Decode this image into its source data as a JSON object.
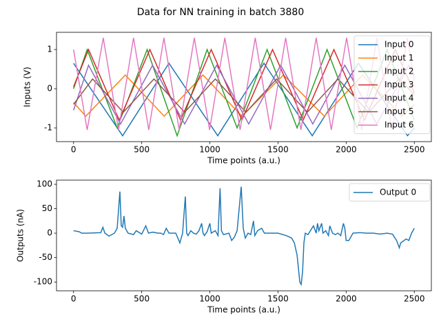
{
  "title": "Data for NN training in batch 3880",
  "chart_data": [
    {
      "type": "line",
      "xlabel": "Time points (a.u.)",
      "ylabel": "Inputs (V)",
      "xlim": [
        -125,
        2625
      ],
      "ylim": [
        -1.35,
        1.44
      ],
      "xticks": [
        0,
        500,
        1000,
        1500,
        2000,
        2500
      ],
      "yticks": [
        -1,
        0,
        1
      ],
      "legend": "upper right",
      "series": [
        {
          "name": "Input 0",
          "color": "#1f77b4",
          "x": [
            0,
            360,
            700,
            1058,
            1397,
            1751,
            2090,
            2450,
            2500
          ],
          "values": [
            0.65,
            -1.2,
            0.65,
            -1.2,
            0.65,
            -1.2,
            0.65,
            -1.2,
            -1.0
          ]
        },
        {
          "name": "Input 1",
          "color": "#ff7f0e",
          "x": [
            0,
            90,
            380,
            665,
            950,
            1235,
            1540,
            1840,
            2120,
            2410,
            2500
          ],
          "values": [
            -0.35,
            -0.7,
            0.35,
            -0.7,
            0.35,
            -0.7,
            0.35,
            -0.7,
            0.35,
            -0.7,
            -0.4
          ]
        },
        {
          "name": "Input 2",
          "color": "#2ca02c",
          "x": [
            0,
            100,
            320,
            540,
            760,
            980,
            1200,
            1420,
            1640,
            1860,
            2080,
            2300,
            2500
          ],
          "values": [
            0.0,
            1.0,
            -1.0,
            1.0,
            -1.2,
            1.0,
            -1.0,
            1.0,
            -1.0,
            1.0,
            -1.0,
            1.0,
            -0.8
          ]
        },
        {
          "name": "Input 3",
          "color": "#d62728",
          "x": [
            0,
            110,
            335,
            560,
            785,
            1010,
            1235,
            1460,
            1685,
            1910,
            2135,
            2360,
            2500
          ],
          "values": [
            0.05,
            1.0,
            -0.8,
            1.0,
            -0.8,
            1.0,
            -0.8,
            1.0,
            -0.8,
            1.0,
            -0.8,
            1.0,
            -0.1
          ]
        },
        {
          "name": "Input 4",
          "color": "#9467bd",
          "x": [
            0,
            110,
            345,
            580,
            815,
            1050,
            1285,
            1520,
            1755,
            1990,
            2225,
            2460,
            2500
          ],
          "values": [
            -0.55,
            0.6,
            -0.9,
            0.6,
            -0.9,
            0.6,
            -0.9,
            0.6,
            -0.9,
            0.6,
            -0.9,
            0.6,
            0.35
          ]
        },
        {
          "name": "Input 5",
          "color": "#8c564b",
          "x": [
            0,
            140,
            365,
            590,
            815,
            1040,
            1265,
            1490,
            1715,
            1940,
            2165,
            2390,
            2500
          ],
          "values": [
            -0.4,
            0.25,
            -0.6,
            0.25,
            -0.6,
            0.25,
            -0.6,
            0.25,
            -0.6,
            0.25,
            -0.6,
            0.25,
            -0.15
          ]
        },
        {
          "name": "Input 6",
          "color": "#e377c2",
          "x": [
            0,
            100,
            218,
            330,
            440,
            552,
            663,
            775,
            886,
            998,
            1110,
            1222,
            1333,
            1445,
            1556,
            1668,
            1780,
            1891,
            2003,
            2114,
            2226,
            2337,
            2449,
            2500
          ],
          "values": [
            1.0,
            -1.05,
            1.3,
            -1.05,
            1.3,
            -1.05,
            1.3,
            -1.05,
            1.3,
            -1.05,
            1.3,
            -1.05,
            1.3,
            -1.05,
            1.3,
            -1.05,
            1.3,
            -1.05,
            1.3,
            -1.05,
            1.3,
            -1.05,
            1.3,
            0.2
          ]
        }
      ]
    },
    {
      "type": "line",
      "xlabel": "Time points (a.u.)",
      "ylabel": "Outputs (nA)",
      "xlim": [
        -125,
        2625
      ],
      "ylim": [
        -118,
        108.5
      ],
      "xticks": [
        0,
        500,
        1000,
        1500,
        2000,
        2500
      ],
      "yticks": [
        -100,
        -50,
        0,
        50,
        100
      ],
      "legend": "upper right",
      "series": [
        {
          "name": "Output 0",
          "color": "#1f77b4",
          "x": [
            0,
            40,
            60,
            100,
            200,
            215,
            230,
            260,
            300,
            320,
            340,
            350,
            360,
            370,
            380,
            400,
            440,
            460,
            500,
            530,
            550,
            580,
            620,
            640,
            660,
            680,
            700,
            750,
            780,
            800,
            820,
            830,
            840,
            860,
            880,
            900,
            920,
            940,
            950,
            960,
            980,
            1000,
            1010,
            1040,
            1060,
            1075,
            1085,
            1100,
            1140,
            1160,
            1180,
            1200,
            1230,
            1245,
            1260,
            1280,
            1300,
            1320,
            1330,
            1350,
            1380,
            1400,
            1440,
            1500,
            1560,
            1600,
            1620,
            1640,
            1660,
            1670,
            1680,
            1690,
            1700,
            1720,
            1760,
            1780,
            1790,
            1800,
            1820,
            1830,
            1850,
            1870,
            1880,
            1900,
            1920,
            1940,
            1960,
            1980,
            1990,
            2000,
            2020,
            2050,
            2100,
            2150,
            2200,
            2250,
            2300,
            2340,
            2370,
            2390,
            2400,
            2440,
            2460,
            2480,
            2500
          ],
          "values": [
            5,
            3,
            0,
            0,
            1,
            12,
            0,
            -6,
            0,
            10,
            85,
            15,
            12,
            35,
            10,
            0,
            -3,
            5,
            -2,
            15,
            0,
            2,
            0,
            0,
            -3,
            10,
            0,
            0,
            -20,
            0,
            75,
            0,
            -5,
            5,
            0,
            -2,
            5,
            20,
            0,
            -5,
            3,
            20,
            0,
            5,
            -5,
            92,
            5,
            -3,
            0,
            -15,
            -8,
            5,
            95,
            10,
            -10,
            0,
            -3,
            25,
            -5,
            5,
            10,
            0,
            0,
            0,
            -5,
            -10,
            -20,
            -45,
            -100,
            -105,
            -80,
            -20,
            0,
            -3,
            15,
            0,
            20,
            5,
            20,
            0,
            5,
            -5,
            15,
            0,
            -3,
            0,
            -5,
            20,
            10,
            -15,
            -15,
            0,
            1,
            0,
            0,
            -2,
            0,
            -2,
            -15,
            -30,
            -20,
            -12,
            -15,
            0,
            10
          ]
        }
      ]
    }
  ]
}
